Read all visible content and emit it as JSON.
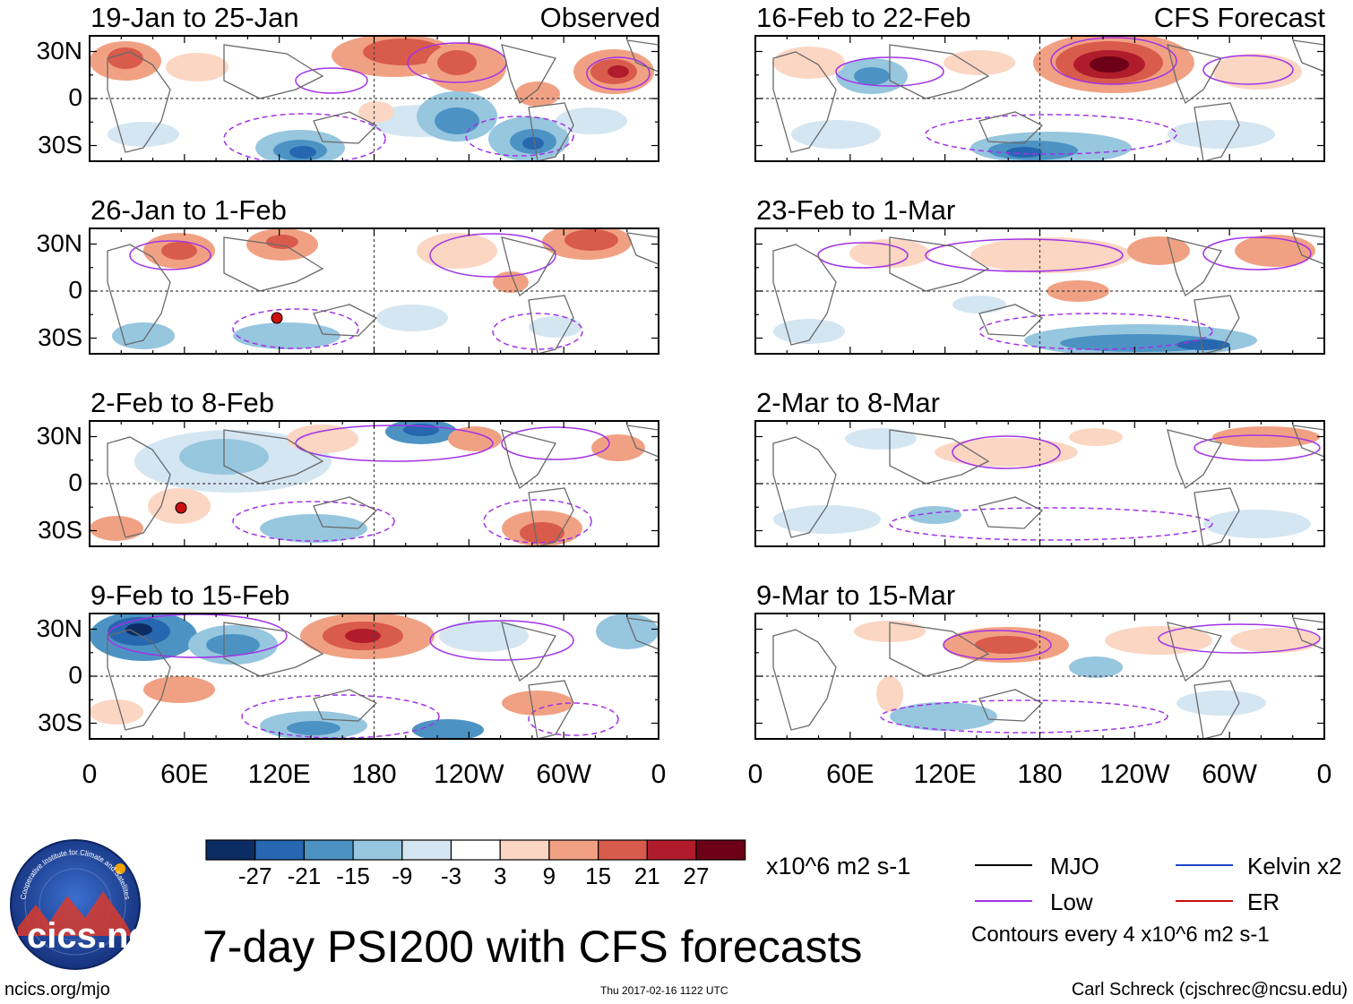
{
  "colors": {
    "scale": [
      "#0b2d63",
      "#2667b0",
      "#4c93c4",
      "#97c6df",
      "#d4e6f2",
      "#ffffff",
      "#fbd6c3",
      "#f1a183",
      "#d95b4c",
      "#b01c2b",
      "#6b0016"
    ],
    "mjo_line": "#000000",
    "low_line": "#a233e6",
    "kelvin_line": "#1a45c8",
    "er_line": "#cc1010",
    "coast": "#6a6a6a"
  },
  "panels_left": [
    {
      "title": "19-Jan to 25-Jan",
      "source": "Observed"
    },
    {
      "title": "26-Jan to 1-Feb",
      "source": ""
    },
    {
      "title": "2-Feb to 8-Feb",
      "source": ""
    },
    {
      "title": "9-Feb to 15-Feb",
      "source": ""
    }
  ],
  "panels_right": [
    {
      "title": "16-Feb to 22-Feb",
      "source": "CFS Forecast"
    },
    {
      "title": "23-Feb to 1-Mar",
      "source": ""
    },
    {
      "title": "2-Mar to 8-Mar",
      "source": ""
    },
    {
      "title": "9-Mar to 15-Mar",
      "source": ""
    }
  ],
  "lat_labels": [
    "30N",
    "0",
    "30S"
  ],
  "lon_labels": [
    "0",
    "60E",
    "120E",
    "180",
    "120W",
    "60W",
    "0"
  ],
  "colorbar": {
    "ticks": [
      "-27",
      "-21",
      "-15",
      "-9",
      "-3",
      "3",
      "9",
      "15",
      "21",
      "27"
    ],
    "units": "x10^6 m2 s-1"
  },
  "legend": {
    "items": [
      {
        "label": "MJO",
        "color": "#000000"
      },
      {
        "label": "Kelvin x2",
        "color": "#1a45c8"
      },
      {
        "label": "Low",
        "color": "#a233e6"
      },
      {
        "label": "ER",
        "color": "#cc1010"
      }
    ],
    "note": "Contours every 4 x10^6 m2 s-1"
  },
  "main_title": "7-day PSI200 with CFS forecasts",
  "logo_text": "cics.nc",
  "logo_ring_text": "Cooperative Institute for Climate and Satellites",
  "footer": {
    "url": "ncics.org/mjo",
    "timestamp": "Thu 2017-02-16 1122 UTC",
    "credit": "Carl Schreck (cjschrec@ncsu.edu)"
  }
}
